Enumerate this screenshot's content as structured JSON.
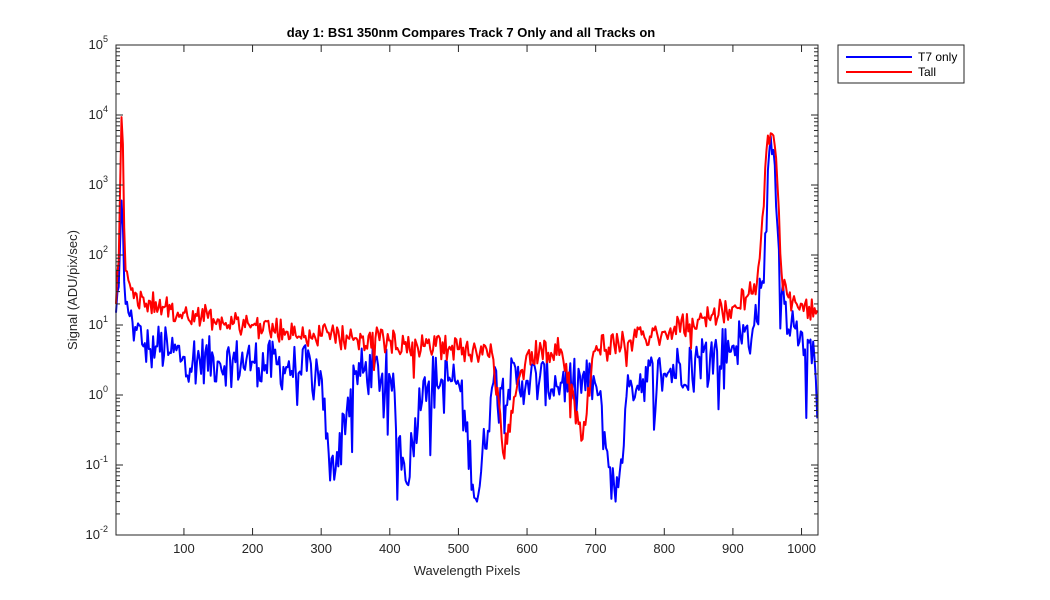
{
  "chart_data": {
    "type": "line",
    "title": "day 1: BS1  350nm  Compares Track 7 Only and all Tracks on",
    "xlabel": "Wavelength Pixels",
    "ylabel": "Signal (ADU/pix/sec)",
    "xlim": [
      1,
      1024
    ],
    "ylim": [
      0.01,
      100000
    ],
    "yscale": "log",
    "grid": false,
    "legend_position": "outside-top-right",
    "x_ticks": [
      100,
      200,
      300,
      400,
      500,
      600,
      700,
      800,
      900,
      1000
    ],
    "x_tick_labels": [
      "100",
      "200",
      "300",
      "400",
      "500",
      "600",
      "700",
      "800",
      "900",
      "1000"
    ],
    "y_ticks": [
      0.01,
      0.1,
      1,
      10,
      100,
      1000,
      10000,
      100000
    ],
    "y_tick_labels": [
      {
        "base": "10",
        "exp": "-2"
      },
      {
        "base": "10",
        "exp": "-1"
      },
      {
        "base": "10",
        "exp": "0"
      },
      {
        "base": "10",
        "exp": "1"
      },
      {
        "base": "10",
        "exp": "2"
      },
      {
        "base": "10",
        "exp": "3"
      },
      {
        "base": "10",
        "exp": "4"
      },
      {
        "base": "10",
        "exp": "5"
      }
    ],
    "series": [
      {
        "name": "T7 only",
        "color": "#0000ff",
        "x": [
          1,
          5,
          8,
          10,
          12,
          15,
          20,
          25,
          30,
          40,
          50,
          60,
          80,
          100,
          150,
          200,
          250,
          300,
          313,
          350,
          400,
          423,
          450,
          500,
          527,
          550,
          600,
          650,
          700,
          729,
          750,
          800,
          850,
          900,
          930,
          945,
          952,
          960,
          966,
          975,
          990,
          1000,
          1010,
          1020,
          1024
        ],
        "y": [
          15,
          35,
          300,
          1200,
          60,
          20,
          14,
          11,
          9,
          5,
          4.5,
          5,
          4,
          3.5,
          3,
          3,
          2.5,
          2.2,
          0.06,
          2.2,
          2,
          0.06,
          1.8,
          1.6,
          0.03,
          1.5,
          1.6,
          1.5,
          1.5,
          0.03,
          1.6,
          2,
          3.5,
          5,
          9,
          40,
          3000,
          3200,
          150,
          20,
          9,
          8,
          6,
          3,
          0.25
        ]
      },
      {
        "name": "Tall",
        "color": "#ff0000",
        "x": [
          1,
          5,
          8,
          10,
          12,
          15,
          20,
          30,
          40,
          50,
          70,
          100,
          150,
          200,
          250,
          300,
          350,
          400,
          450,
          500,
          550,
          565,
          600,
          650,
          680,
          700,
          750,
          800,
          850,
          900,
          920,
          935,
          945,
          950,
          955,
          960,
          965,
          970,
          980,
          1000,
          1024
        ],
        "y": [
          20,
          80,
          3000,
          29000,
          500,
          60,
          40,
          28,
          25,
          22,
          18,
          15,
          12,
          10,
          8,
          7,
          6.5,
          6,
          5,
          4.5,
          4,
          0.15,
          4,
          4.5,
          0.2,
          5,
          6,
          8,
          12,
          18,
          25,
          40,
          500,
          5000,
          5500,
          5000,
          1000,
          60,
          25,
          20,
          16
        ]
      }
    ]
  }
}
